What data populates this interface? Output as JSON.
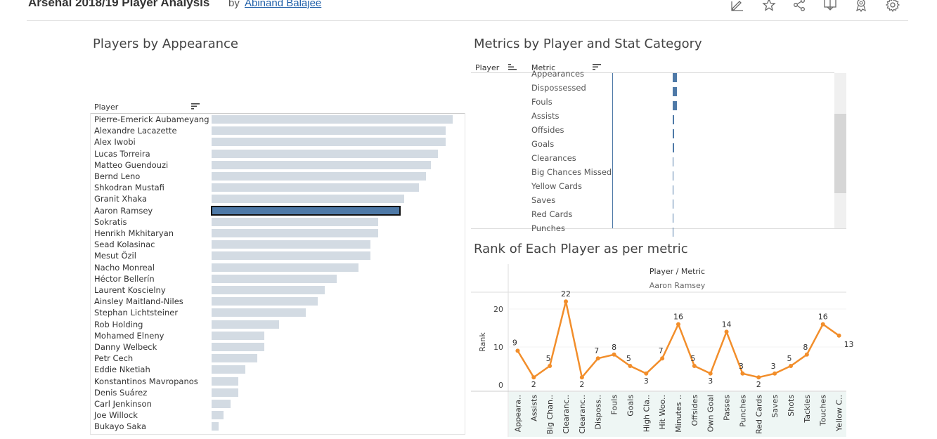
{
  "header": {
    "title": "Arsenal 2018/19 Player Analysis",
    "by": "by",
    "author": "Abinand Balajee",
    "toolbar_icons": [
      "edit-icon",
      "star-icon",
      "share-icon",
      "download-icon",
      "badge-icon",
      "gear-icon"
    ]
  },
  "players_panel": {
    "title": "Players by Appearance",
    "column_header": "Player",
    "selected": "Aaron Ramsey",
    "max_value": 100,
    "rows": [
      {
        "name": "Pierre-Emerick Aubameyang",
        "value": 100
      },
      {
        "name": "Alexandre Lacazette",
        "value": 97
      },
      {
        "name": "Alex Iwobi",
        "value": 97
      },
      {
        "name": "Lucas Torreira",
        "value": 94
      },
      {
        "name": "Matteo Guendouzi",
        "value": 91
      },
      {
        "name": "Bernd Leno",
        "value": 89
      },
      {
        "name": "Shkodran Mustafi",
        "value": 86
      },
      {
        "name": "Granit Xhaka",
        "value": 80
      },
      {
        "name": "Aaron Ramsey",
        "value": 78
      },
      {
        "name": "Sokratis",
        "value": 69
      },
      {
        "name": "Henrikh Mkhitaryan",
        "value": 69
      },
      {
        "name": "Sead Kolasinac",
        "value": 66
      },
      {
        "name": "Mesut Özil",
        "value": 66
      },
      {
        "name": "Nacho Monreal",
        "value": 61
      },
      {
        "name": "Héctor Bellerín",
        "value": 52
      },
      {
        "name": "Laurent Koscielny",
        "value": 47
      },
      {
        "name": "Ainsley Maitland-Niles",
        "value": 44
      },
      {
        "name": "Stephan Lichtsteiner",
        "value": 39
      },
      {
        "name": "Rob Holding",
        "value": 28
      },
      {
        "name": "Mohamed Elneny",
        "value": 22
      },
      {
        "name": "Danny Welbeck",
        "value": 22
      },
      {
        "name": "Petr Cech",
        "value": 19
      },
      {
        "name": "Eddie Nketiah",
        "value": 14
      },
      {
        "name": "Konstantinos Mavropanos",
        "value": 11
      },
      {
        "name": "Denis Suárez",
        "value": 11
      },
      {
        "name": "Carl Jenkinson",
        "value": 8
      },
      {
        "name": "Joe Willock",
        "value": 5
      },
      {
        "name": "Bukayo Saka",
        "value": 3
      }
    ]
  },
  "metrics_panel": {
    "title": "Metrics by Player and Stat Category",
    "col_player": "Player",
    "col_metric": "Metric",
    "bar_color": "#4e79a7",
    "rows": [
      {
        "name": "Appearances",
        "value": 1.0
      },
      {
        "name": "Dispossessed",
        "value": 1.0
      },
      {
        "name": "Fouls",
        "value": 1.0
      },
      {
        "name": "Assists",
        "value": 0.3
      },
      {
        "name": "Offsides",
        "value": 0.3
      },
      {
        "name": "Goals",
        "value": 0.3
      },
      {
        "name": "Clearances",
        "value": 0.2
      },
      {
        "name": "Big Chances Missed",
        "value": 0.2
      },
      {
        "name": "Yellow Cards",
        "value": 0.15
      },
      {
        "name": "Saves",
        "value": 0.1
      },
      {
        "name": "Red Cards",
        "value": 0.1
      },
      {
        "name": "Punches",
        "value": 0.1
      }
    ]
  },
  "rank_panel": {
    "title": "Rank of Each Player as per metric",
    "header": "Player / Metric",
    "player": "Aaron Ramsey"
  },
  "chart_data": {
    "type": "line",
    "title": "Rank of Each Player as per metric",
    "ylabel": "Rank",
    "xlabel": "",
    "yticks": [
      0,
      10,
      20
    ],
    "ylim": [
      0,
      23
    ],
    "line_color": "#f28e2b",
    "categories": [
      "Appeara..",
      "Assists",
      "Big Chan..",
      "Clearanc..",
      "Clearanc..",
      "Disposs..",
      "Fouls",
      "Goals",
      "High Cla..",
      "Hit Woo..",
      "Minutes ..",
      "Offsides",
      "Own Goal",
      "Passes",
      "Punches",
      "Red Cards",
      "Saves",
      "Shots",
      "Tackles",
      "Touches",
      "Yellow C.."
    ],
    "series": [
      {
        "values": [
          9,
          2,
          5,
          22,
          2,
          7,
          8,
          5,
          3,
          7,
          16,
          5,
          3,
          14,
          3,
          2,
          3,
          5,
          8,
          16,
          13
        ]
      }
    ]
  }
}
